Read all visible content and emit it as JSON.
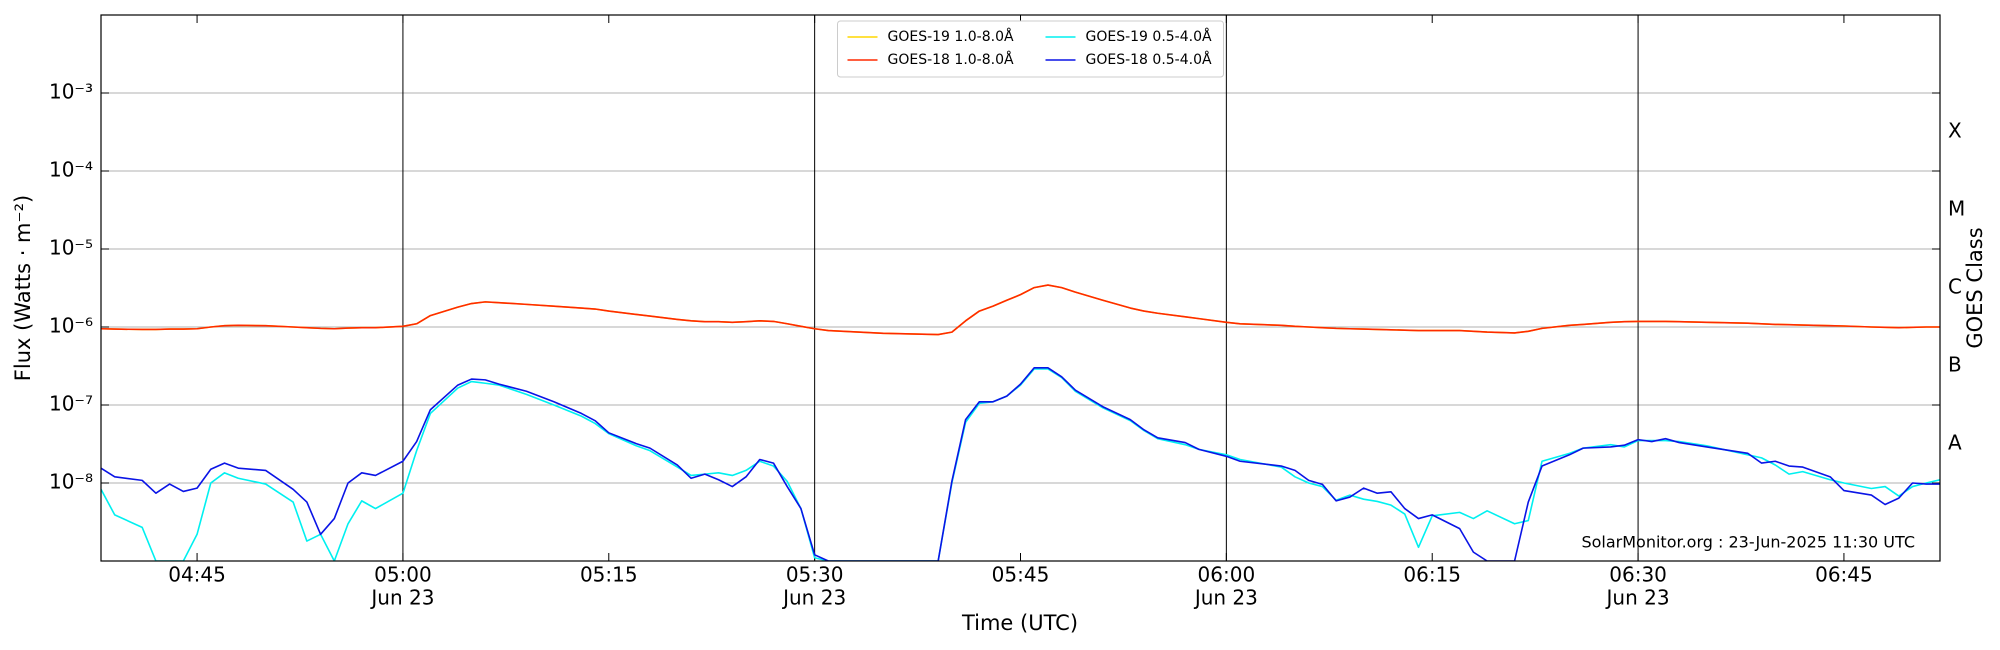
{
  "chart_data": {
    "type": "line",
    "xlabel": "Time (UTC)",
    "ylabel": "Flux (Watts · m⁻²)",
    "y2label": "GOES Class",
    "annotation": "SolarMonitor.org : 23-Jun-2025 11:30 UTC",
    "log_y": true,
    "grid": true,
    "legend": "upper center",
    "xlim": [
      "04:38",
      "06:52"
    ],
    "xticks": [
      "04:45",
      {
        "value": "05:00",
        "label": [
          "05:00",
          "Jun 23"
        ]
      },
      "05:15",
      {
        "value": "05:30",
        "label": [
          "05:30",
          "Jun 23"
        ]
      },
      "05:45",
      {
        "value": "06:00",
        "label": [
          "06:00",
          "Jun 23"
        ]
      },
      "06:15",
      {
        "value": "06:30",
        "label": [
          "06:30",
          "Jun 23"
        ]
      },
      "06:45"
    ],
    "ylim": [
      1e-09,
      0.01
    ],
    "yticks": [
      {
        "value": 1e-08,
        "label": "10⁻⁸"
      },
      {
        "value": 1e-07,
        "label": "10⁻⁷"
      },
      {
        "value": 1e-06,
        "label": "10⁻⁶"
      },
      {
        "value": 1e-05,
        "label": "10⁻⁵"
      },
      {
        "value": 0.0001,
        "label": "10⁻⁴"
      },
      {
        "value": 0.001,
        "label": "10⁻³"
      }
    ],
    "y2lim": [
      1e-09,
      0.01
    ],
    "y2ticks": [
      {
        "value": 3.162e-08,
        "label": "A"
      },
      {
        "value": 3.162e-07,
        "label": "B"
      },
      {
        "value": 3.162e-06,
        "label": "C"
      },
      {
        "value": 3.162e-05,
        "label": "M"
      },
      {
        "value": 0.0003162,
        "label": "X"
      }
    ],
    "x": [
      "04:38",
      "04:39",
      "04:41",
      "04:42",
      "04:43",
      "04:44",
      "04:45",
      "04:46",
      "04:47",
      "04:48",
      "04:50",
      "04:52",
      "04:53",
      "04:54",
      "04:55",
      "04:56",
      "04:57",
      "04:58",
      "05:00",
      "05:01",
      "05:02",
      "05:04",
      "05:05",
      "05:06",
      "05:07",
      "05:09",
      "05:11",
      "05:13",
      "05:14",
      "05:15",
      "05:17",
      "05:18",
      "05:20",
      "05:21",
      "05:22",
      "05:23",
      "05:24",
      "05:25",
      "05:26",
      "05:27",
      "05:28",
      "05:29",
      "05:30",
      "05:31",
      "05:35",
      "05:39",
      "05:40",
      "05:41",
      "05:42",
      "05:43",
      "05:44",
      "05:45",
      "05:46",
      "05:47",
      "05:48",
      "05:49",
      "05:51",
      "05:53",
      "05:54",
      "05:55",
      "05:57",
      "05:58",
      "06:00",
      "06:01",
      "06:04",
      "06:05",
      "06:06",
      "06:07",
      "06:08",
      "06:09",
      "06:10",
      "06:11",
      "06:12",
      "06:13",
      "06:14",
      "06:15",
      "06:17",
      "06:18",
      "06:19",
      "06:21",
      "06:22",
      "06:23",
      "06:25",
      "06:26",
      "06:28",
      "06:29",
      "06:30",
      "06:31",
      "06:32",
      "06:33",
      "06:35",
      "06:38",
      "06:39",
      "06:40",
      "06:41",
      "06:42",
      "06:44",
      "06:45",
      "06:47",
      "06:48",
      "06:49",
      "06:50",
      "06:51",
      "06:52"
    ],
    "series": [
      {
        "name": "GOES-19 1.0-8.0Å",
        "color": "#ffd700",
        "values": [
          9.5e-07,
          9.4e-07,
          9.3e-07,
          9.3e-07,
          9.4e-07,
          9.4e-07,
          9.5e-07,
          1e-06,
          1.04e-06,
          1.05e-06,
          1.04e-06,
          1e-06,
          9.8e-07,
          9.6e-07,
          9.5e-07,
          9.7e-07,
          9.8e-07,
          9.8e-07,
          1.02e-06,
          1.1e-06,
          1.4e-06,
          1.8e-06,
          2e-06,
          2.1e-06,
          2.05e-06,
          1.95e-06,
          1.85e-06,
          1.75e-06,
          1.7e-06,
          1.6e-06,
          1.45e-06,
          1.38e-06,
          1.25e-06,
          1.2e-06,
          1.17e-06,
          1.17e-06,
          1.15e-06,
          1.17e-06,
          1.2e-06,
          1.18e-06,
          1.1e-06,
          1.02e-06,
          9.5e-07,
          9e-07,
          8.3e-07,
          8e-07,
          8.6e-07,
          1.2e-06,
          1.6e-06,
          1.85e-06,
          2.2e-06,
          2.6e-06,
          3.2e-06,
          3.45e-06,
          3.2e-06,
          2.8e-06,
          2.2e-06,
          1.75e-06,
          1.6e-06,
          1.5e-06,
          1.35e-06,
          1.28e-06,
          1.15e-06,
          1.1e-06,
          1.05e-06,
          1.02e-06,
          1e-06,
          9.8e-07,
          9.6e-07,
          9.5e-07,
          9.4e-07,
          9.3e-07,
          9.2e-07,
          9.1e-07,
          9e-07,
          9e-07,
          9e-07,
          8.8e-07,
          8.6e-07,
          8.4e-07,
          8.8e-07,
          9.6e-07,
          1.05e-06,
          1.08e-06,
          1.15e-06,
          1.17e-06,
          1.18e-06,
          1.18e-06,
          1.18e-06,
          1.17e-06,
          1.15e-06,
          1.12e-06,
          1.1e-06,
          1.08e-06,
          1.07e-06,
          1.06e-06,
          1.04e-06,
          1.03e-06,
          1e-06,
          9.9e-07,
          9.8e-07,
          9.9e-07,
          1e-06,
          1e-06
        ]
      },
      {
        "name": "GOES-18 1.0-8.0Å",
        "color": "#ff2a00",
        "values": [
          9.5e-07,
          9.4e-07,
          9.3e-07,
          9.3e-07,
          9.4e-07,
          9.4e-07,
          9.5e-07,
          1e-06,
          1.04e-06,
          1.05e-06,
          1.04e-06,
          1e-06,
          9.8e-07,
          9.6e-07,
          9.5e-07,
          9.7e-07,
          9.8e-07,
          9.8e-07,
          1.02e-06,
          1.1e-06,
          1.4e-06,
          1.8e-06,
          2e-06,
          2.1e-06,
          2.05e-06,
          1.95e-06,
          1.85e-06,
          1.75e-06,
          1.7e-06,
          1.6e-06,
          1.45e-06,
          1.38e-06,
          1.25e-06,
          1.2e-06,
          1.17e-06,
          1.17e-06,
          1.15e-06,
          1.17e-06,
          1.2e-06,
          1.18e-06,
          1.1e-06,
          1.02e-06,
          9.5e-07,
          9e-07,
          8.3e-07,
          8e-07,
          8.6e-07,
          1.2e-06,
          1.6e-06,
          1.85e-06,
          2.2e-06,
          2.6e-06,
          3.2e-06,
          3.45e-06,
          3.2e-06,
          2.8e-06,
          2.2e-06,
          1.75e-06,
          1.6e-06,
          1.5e-06,
          1.35e-06,
          1.28e-06,
          1.15e-06,
          1.1e-06,
          1.05e-06,
          1.02e-06,
          1e-06,
          9.8e-07,
          9.6e-07,
          9.5e-07,
          9.4e-07,
          9.3e-07,
          9.2e-07,
          9.1e-07,
          9e-07,
          9e-07,
          9e-07,
          8.8e-07,
          8.6e-07,
          8.4e-07,
          8.8e-07,
          9.6e-07,
          1.05e-06,
          1.08e-06,
          1.15e-06,
          1.17e-06,
          1.18e-06,
          1.18e-06,
          1.18e-06,
          1.17e-06,
          1.15e-06,
          1.12e-06,
          1.1e-06,
          1.08e-06,
          1.07e-06,
          1.06e-06,
          1.04e-06,
          1.03e-06,
          1e-06,
          9.9e-07,
          9.8e-07,
          9.9e-07,
          1e-06,
          1e-06
        ]
      },
      {
        "name": "GOES-19 0.5-4.0Å",
        "color": "#00f0f0",
        "values": [
          8.3e-09,
          3.9e-09,
          2.7e-09,
          1e-09,
          1e-09,
          1e-09,
          2.2e-09,
          1e-08,
          1.35e-08,
          1.15e-08,
          9.7e-09,
          5.7e-09,
          1.8e-09,
          2.2e-09,
          1e-09,
          3e-09,
          5.9e-09,
          4.7e-09,
          7.4e-09,
          2.6e-08,
          7.8e-08,
          1.65e-07,
          2e-07,
          1.9e-07,
          1.8e-07,
          1.37e-07,
          1e-07,
          7.2e-08,
          5.8e-08,
          4.3e-08,
          3e-08,
          2.6e-08,
          1.6e-08,
          1.25e-08,
          1.3e-08,
          1.35e-08,
          1.25e-08,
          1.45e-08,
          1.9e-08,
          1.65e-08,
          1.05e-08,
          4.7e-09,
          1.1e-09,
          1e-09,
          1e-09,
          1e-09,
          1e-08,
          6e-08,
          1.05e-07,
          1.1e-07,
          1.3e-07,
          1.8e-07,
          2.9e-07,
          2.9e-07,
          2.25e-07,
          1.5e-07,
          9.2e-08,
          6.3e-08,
          4.7e-08,
          3.7e-08,
          3.1e-08,
          2.7e-08,
          2.3e-08,
          2e-08,
          1.6e-08,
          1.2e-08,
          1e-08,
          9e-09,
          6e-09,
          7e-09,
          6.2e-09,
          5.8e-09,
          5.2e-09,
          4e-09,
          1.5e-09,
          3.8e-09,
          4.2e-09,
          3.5e-09,
          4.4e-09,
          3e-09,
          3.3e-09,
          1.9e-08,
          2.4e-08,
          2.8e-08,
          3.1e-08,
          2.9e-08,
          3.5e-08,
          3.5e-08,
          3.5e-08,
          3.4e-08,
          3e-08,
          2.3e-08,
          2.1e-08,
          1.7e-08,
          1.3e-08,
          1.4e-08,
          1.1e-08,
          1e-08,
          8.5e-09,
          9e-09,
          6.8e-09,
          9e-09,
          1e-08,
          1.1e-08
        ]
      },
      {
        "name": "GOES-18 0.5-4.0Å",
        "color": "#0a14e6",
        "values": [
          1.55e-08,
          1.2e-08,
          1.08e-08,
          7.4e-09,
          9.7e-09,
          7.8e-09,
          8.6e-09,
          1.5e-08,
          1.8e-08,
          1.55e-08,
          1.45e-08,
          8.3e-09,
          5.7e-09,
          2.2e-09,
          3.5e-09,
          1e-08,
          1.35e-08,
          1.25e-08,
          1.9e-08,
          3.4e-08,
          8.7e-08,
          1.8e-07,
          2.15e-07,
          2.1e-07,
          1.85e-07,
          1.5e-07,
          1.1e-07,
          7.8e-08,
          6.3e-08,
          4.4e-08,
          3.2e-08,
          2.8e-08,
          1.7e-08,
          1.15e-08,
          1.3e-08,
          1.1e-08,
          9e-09,
          1.2e-08,
          2e-08,
          1.8e-08,
          9e-09,
          4.7e-09,
          1.2e-09,
          1e-09,
          1e-09,
          1e-09,
          1.05e-08,
          6.5e-08,
          1.1e-07,
          1.1e-07,
          1.3e-07,
          1.85e-07,
          3e-07,
          3e-07,
          2.3e-07,
          1.55e-07,
          9.5e-08,
          6.5e-08,
          4.8e-08,
          3.8e-08,
          3.3e-08,
          2.7e-08,
          2.2e-08,
          1.9e-08,
          1.65e-08,
          1.45e-08,
          1.08e-08,
          9.6e-09,
          5.9e-09,
          6.6e-09,
          8.6e-09,
          7.4e-09,
          7.7e-09,
          4.7e-09,
          3.5e-09,
          3.9e-09,
          2.6e-09,
          1.3e-09,
          1e-09,
          1e-09,
          5.7e-09,
          1.65e-08,
          2.3e-08,
          2.8e-08,
          2.9e-08,
          3.05e-08,
          3.6e-08,
          3.4e-08,
          3.7e-08,
          3.3e-08,
          2.9e-08,
          2.4e-08,
          1.8e-08,
          1.9e-08,
          1.65e-08,
          1.6e-08,
          1.2e-08,
          8e-09,
          7e-09,
          5.3e-09,
          6.4e-09,
          1e-08,
          9.7e-09,
          9.7e-09
        ]
      }
    ]
  }
}
